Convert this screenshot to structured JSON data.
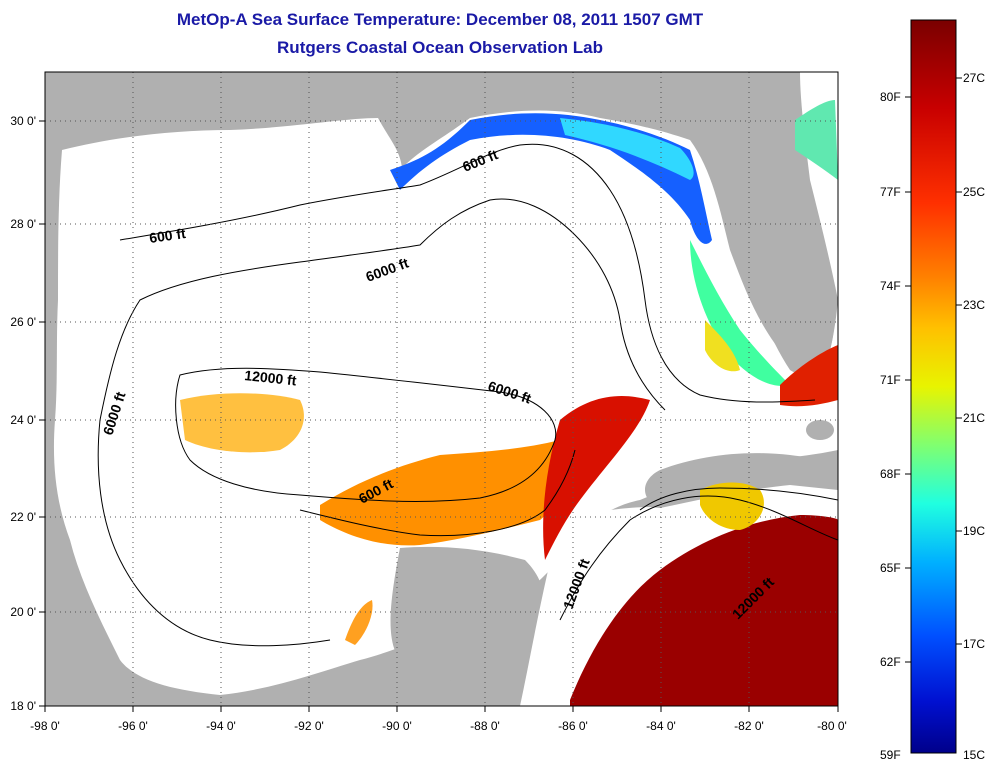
{
  "title": {
    "line1": "MetOp-A Sea Surface Temperature:  December 08, 2011 1507 GMT",
    "line2": "Rutgers Coastal Ocean Observation Lab"
  },
  "axes": {
    "x_ticks": [
      "-98 0'",
      "-96 0'",
      "-94 0'",
      "-92 0'",
      "-90 0'",
      "-88 0'",
      "-86 0'",
      "-84 0'",
      "-82 0'",
      "-80 0'"
    ],
    "y_ticks": [
      "30 0'",
      "28 0'",
      "26 0'",
      "24 0'",
      "22 0'",
      "20 0'",
      "18 0'"
    ],
    "lon_range": [
      -98,
      -80
    ],
    "lat_range": [
      18,
      31
    ]
  },
  "contours": [
    {
      "text": "600 ft"
    },
    {
      "text": "600 ft"
    },
    {
      "text": "6000 ft"
    },
    {
      "text": "6000 ft"
    },
    {
      "text": "6000 ft"
    },
    {
      "text": "12000 ft"
    },
    {
      "text": "600 ft"
    },
    {
      "text": "12000 ft"
    },
    {
      "text": "12000 ft"
    }
  ],
  "colorbar": {
    "fahrenheit": [
      "80F",
      "77F",
      "74F",
      "71F",
      "68F",
      "65F",
      "62F",
      "59F"
    ],
    "celsius": [
      "27C",
      "25C",
      "23C",
      "21C",
      "19C",
      "17C",
      "15C"
    ],
    "colors": [
      "#7a0000",
      "#c80000",
      "#ff3000",
      "#ff7a00",
      "#ffc000",
      "#f4f400",
      "#a8ff50",
      "#40ffb8",
      "#00e0ff",
      "#00a0ff",
      "#0050ff",
      "#0010d0",
      "#00008a"
    ]
  },
  "colors": {
    "land": "#b0b0b0",
    "ocean": "#ffffff",
    "title": "#1a1aa6"
  }
}
